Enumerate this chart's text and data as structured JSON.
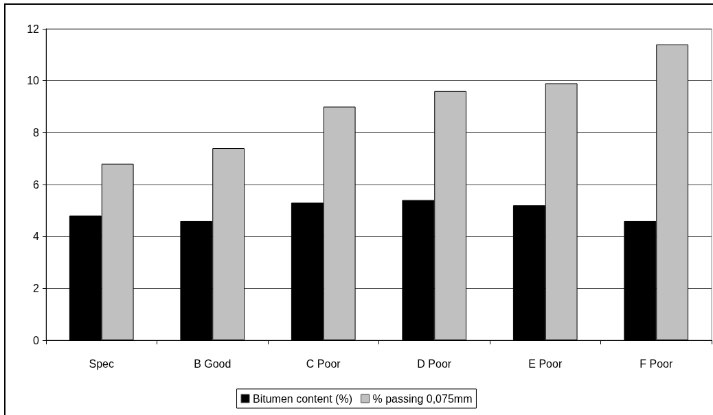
{
  "chart_data": {
    "type": "bar",
    "categories": [
      "Spec",
      "B Good",
      "C Poor",
      "D Poor",
      "E Poor",
      "F Poor"
    ],
    "series": [
      {
        "name": "Bitumen content (%)",
        "color": "#000000",
        "values": [
          4.8,
          4.6,
          5.3,
          5.4,
          5.2,
          4.6
        ]
      },
      {
        "name": "% passing 0,075mm",
        "color": "#c0c0c0",
        "values": [
          6.8,
          7.4,
          9.0,
          9.6,
          9.9,
          11.4
        ]
      }
    ],
    "ylim": [
      0,
      12
    ],
    "yticks": [
      0,
      2,
      4,
      6,
      8,
      10,
      12
    ],
    "grid": "y",
    "legend": "bottom"
  }
}
